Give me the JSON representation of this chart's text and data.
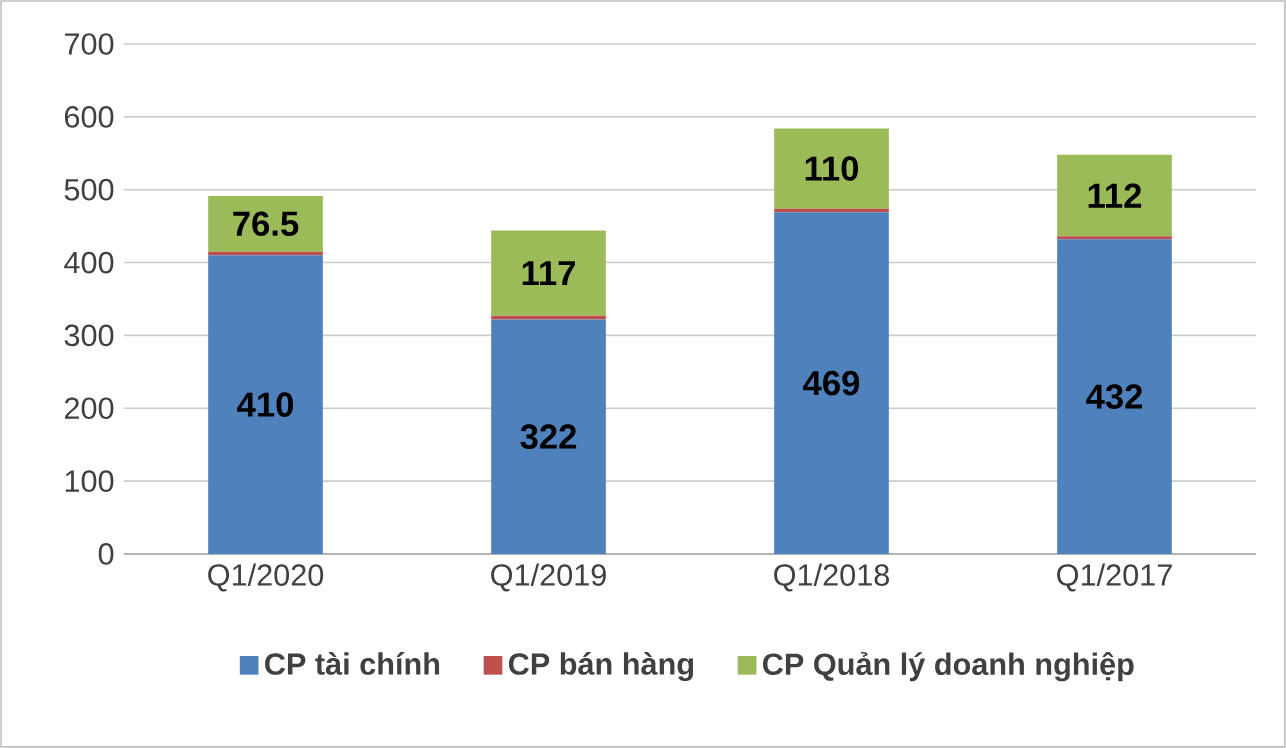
{
  "chart_data": {
    "type": "bar",
    "stacked": true,
    "categories": [
      "Q1/2020",
      "Q1/2019",
      "Q1/2018",
      "Q1/2017"
    ],
    "series": [
      {
        "name": "CP tài chính",
        "color": "#4f81bd",
        "values": [
          410,
          322,
          469,
          432
        ],
        "value_labels": [
          "410",
          "322",
          "469",
          "432"
        ]
      },
      {
        "name": "CP bán hàng",
        "color": "#c0504d",
        "values": [
          5,
          5,
          5,
          4
        ],
        "value_labels": [
          null,
          null,
          null,
          null
        ]
      },
      {
        "name": "CP Quản lý doanh nghiệp",
        "color": "#9bbb59",
        "values": [
          76.5,
          117,
          110,
          112
        ],
        "value_labels": [
          "76.5",
          "117",
          "110",
          "112"
        ]
      }
    ],
    "ylim": [
      0,
      700
    ],
    "yticks": [
      0,
      100,
      200,
      300,
      400,
      500,
      600,
      700
    ],
    "grid": "y",
    "legend": "bottom"
  }
}
